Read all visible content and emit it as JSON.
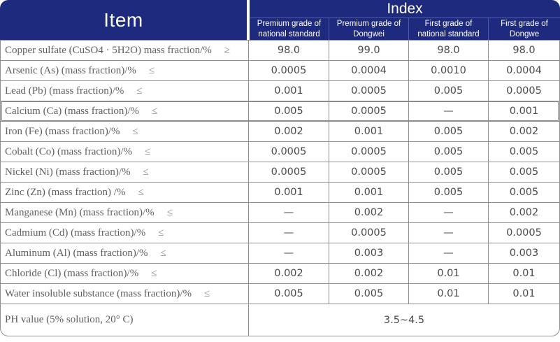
{
  "colors": {
    "header_bg": "#1e2a7d",
    "header_divider": "#4d5ba6",
    "border": "#8f8f8f",
    "label_text": "#5f5f5f",
    "value_text": "#4a4a4a"
  },
  "table": {
    "item_header": "Item",
    "index_header": "Index",
    "sub_headers": [
      "Premium grade of national standard",
      "Premium grade of Dongwei",
      "First grade of national standard",
      "First grade of Dongwe"
    ],
    "rows": [
      {
        "label": "Copper sulfate (CuSO4 · 5H2O) mass fraction/%",
        "symbol": "≥",
        "values": [
          "98.0",
          "99.0",
          "98.0",
          "98.0"
        ]
      },
      {
        "label": "Arsenic (As) (mass fraction)/%",
        "symbol": "≤",
        "values": [
          "0.0005",
          "0.0004",
          "0.0010",
          "0.0004"
        ]
      },
      {
        "label": "Lead (Pb) (mass fraction)/%",
        "symbol": "≤",
        "values": [
          "0.001",
          "0.0005",
          "0.005",
          "0.0005"
        ]
      },
      {
        "label": "Calcium (Ca) (mass fraction)/%",
        "symbol": "≤",
        "values": [
          "0.005",
          "0.0005",
          "—",
          "0.001"
        ],
        "highlighted": true
      },
      {
        "label": "Iron (Fe) (mass fraction)/%",
        "symbol": "≤",
        "values": [
          "0.002",
          "0.001",
          "0.005",
          "0.002"
        ]
      },
      {
        "label": "Cobalt (Co) (mass fraction)/%",
        "symbol": "≤",
        "values": [
          "0.0005",
          "0.0005",
          "0.005",
          "0.005"
        ]
      },
      {
        "label": "Nickel (Ni) (mass fraction)/%",
        "symbol": "≤",
        "values": [
          "0.0005",
          "0.0005",
          "0.005",
          "0.005"
        ]
      },
      {
        "label": "Zinc (Zn) (mass fraction) /%",
        "symbol": "≤",
        "values": [
          "0.001",
          "0.001",
          "0.005",
          "0.005"
        ]
      },
      {
        "label": "Manganese (Mn) (mass fraction)/%",
        "symbol": "≤",
        "values": [
          "—",
          "0.002",
          "—",
          "0.002"
        ]
      },
      {
        "label": "Cadmium (Cd) (mass fraction)/%",
        "symbol": "≤",
        "values": [
          "—",
          "0.0005",
          "—",
          "0.0005"
        ]
      },
      {
        "label": "Aluminum (Al) (mass fraction)/%",
        "symbol": "≤",
        "values": [
          "—",
          "0.003",
          "—",
          "0.003"
        ]
      },
      {
        "label": "Chloride (Cl) (mass fraction)/%",
        "symbol": "≤",
        "values": [
          "0.002",
          "0.002",
          "0.01",
          "0.01"
        ]
      },
      {
        "label": "Water insoluble substance (mass fraction)/%",
        "symbol": "≤",
        "values": [
          "0.005",
          "0.005",
          "0.01",
          "0.01"
        ]
      },
      {
        "label": "PH value (5% solution, 20° C)",
        "symbol": "",
        "values": [
          "3.5~4.5"
        ],
        "span": true,
        "tall": true
      }
    ]
  }
}
